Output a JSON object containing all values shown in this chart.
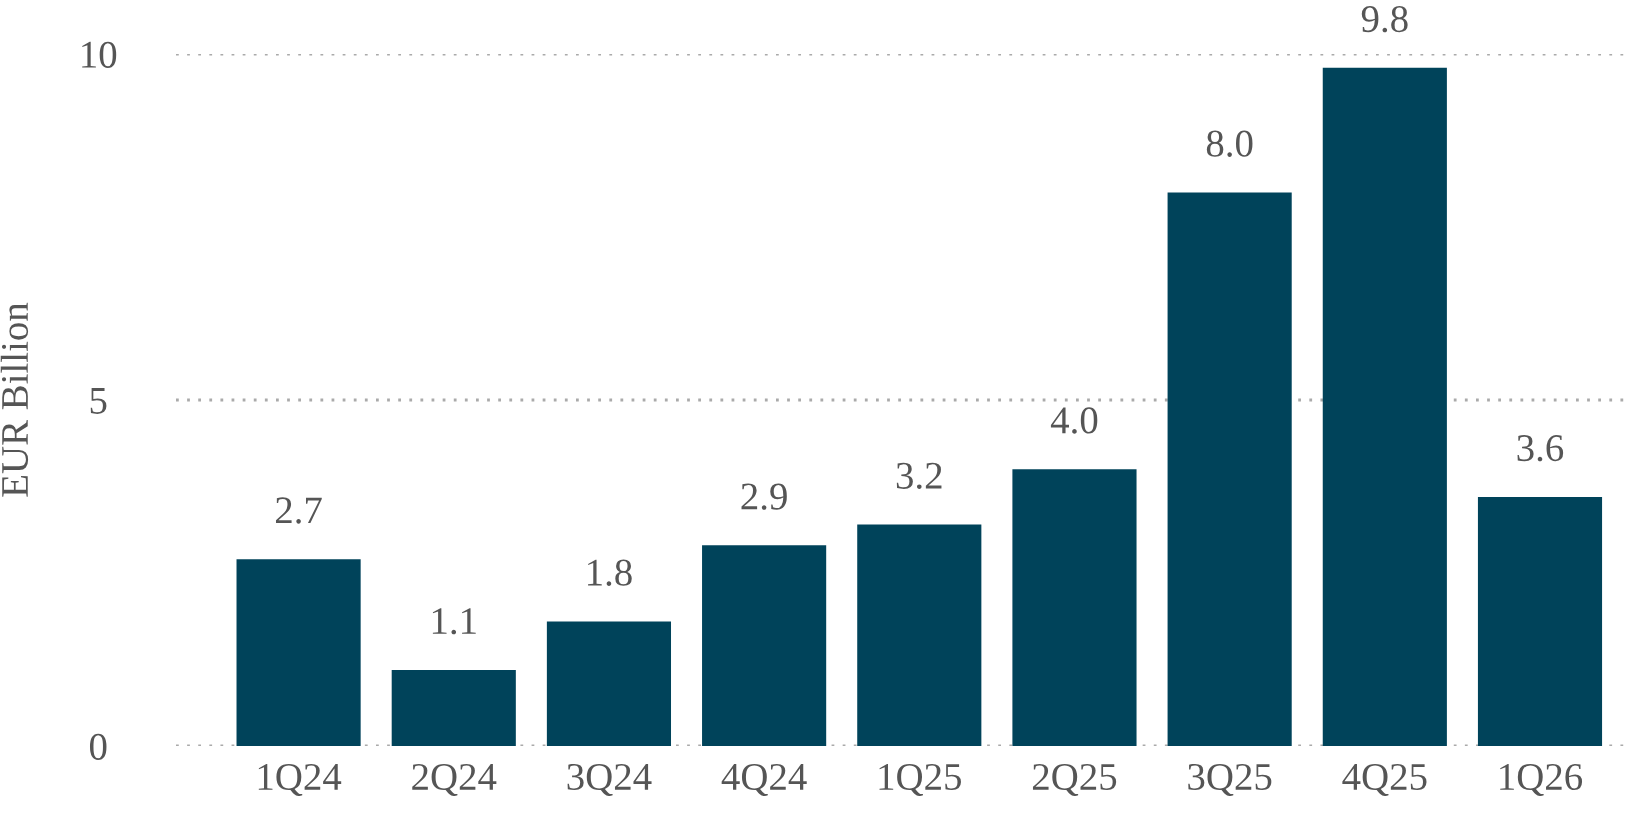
{
  "chart_data": {
    "type": "bar",
    "ylabel": "EUR Billion",
    "categories": [
      "1Q24",
      "2Q24",
      "3Q24",
      "4Q24",
      "1Q25",
      "2Q25",
      "3Q25",
      "4Q25",
      "1Q26"
    ],
    "values": [
      2.7,
      1.1,
      1.8,
      2.9,
      3.2,
      4.0,
      8.0,
      9.8,
      3.6
    ],
    "value_labels": [
      "2.7",
      "1.1",
      "1.8",
      "2.9",
      "3.2",
      "4.0",
      "8.0",
      "9.8",
      "3.6"
    ],
    "color": "#00435a",
    "ylim": [
      0,
      10
    ],
    "yticks": [
      0,
      5,
      10
    ],
    "grid": "y"
  }
}
